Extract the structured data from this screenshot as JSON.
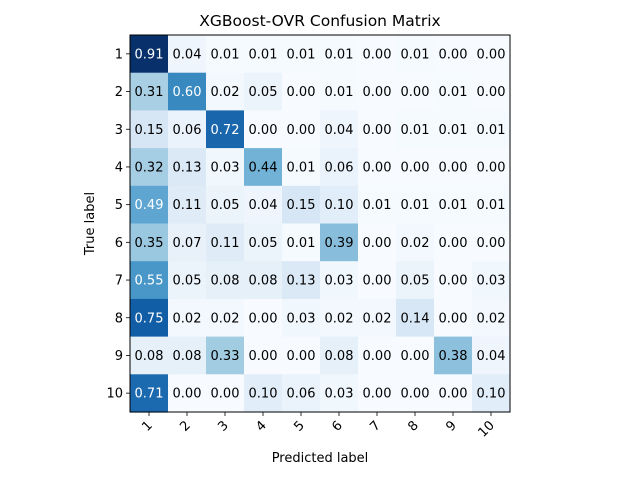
{
  "chart_data": {
    "type": "heatmap",
    "title": "XGBoost-OVR Confusion Matrix",
    "xlabel": "Predicted label",
    "ylabel": "True label",
    "x_categories": [
      "1",
      "2",
      "3",
      "4",
      "5",
      "6",
      "7",
      "8",
      "9",
      "10"
    ],
    "y_categories": [
      "1",
      "2",
      "3",
      "4",
      "5",
      "6",
      "7",
      "8",
      "9",
      "10"
    ],
    "colormap": "Blues",
    "value_range": [
      0,
      0.91
    ],
    "x_tick_rotation": 45,
    "matrix": [
      [
        0.91,
        0.04,
        0.01,
        0.01,
        0.01,
        0.01,
        0.0,
        0.01,
        0.0,
        0.0
      ],
      [
        0.31,
        0.6,
        0.02,
        0.05,
        0.0,
        0.01,
        0.0,
        0.0,
        0.01,
        0.0
      ],
      [
        0.15,
        0.06,
        0.72,
        0.0,
        0.0,
        0.04,
        0.0,
        0.01,
        0.01,
        0.01
      ],
      [
        0.32,
        0.13,
        0.03,
        0.44,
        0.01,
        0.06,
        0.0,
        0.0,
        0.0,
        0.0
      ],
      [
        0.49,
        0.11,
        0.05,
        0.04,
        0.15,
        0.1,
        0.01,
        0.01,
        0.01,
        0.01
      ],
      [
        0.35,
        0.07,
        0.11,
        0.05,
        0.01,
        0.39,
        0.0,
        0.02,
        0.0,
        0.0
      ],
      [
        0.55,
        0.05,
        0.08,
        0.08,
        0.13,
        0.03,
        0.0,
        0.05,
        0.0,
        0.03
      ],
      [
        0.75,
        0.02,
        0.02,
        0.0,
        0.03,
        0.02,
        0.02,
        0.14,
        0.0,
        0.02
      ],
      [
        0.08,
        0.08,
        0.33,
        0.0,
        0.0,
        0.08,
        0.0,
        0.0,
        0.38,
        0.04
      ],
      [
        0.71,
        0.0,
        0.0,
        0.1,
        0.06,
        0.03,
        0.0,
        0.0,
        0.0,
        0.1
      ]
    ]
  }
}
